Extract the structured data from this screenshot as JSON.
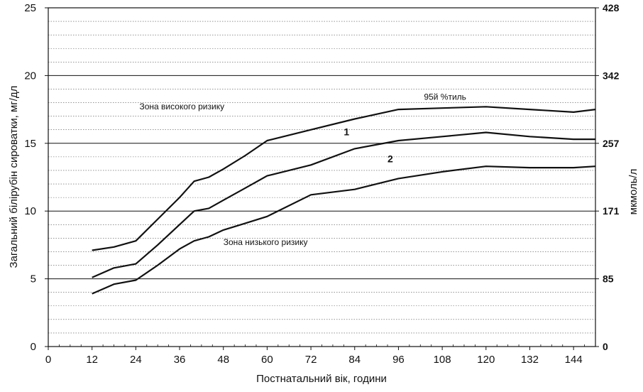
{
  "chart_data": {
    "type": "line",
    "title": "",
    "xlabel": "Постнатальний вік, години",
    "ylabel": "Загальний білірубін сироватки, мг/дл",
    "ylabel_right": "мкмоль/л",
    "xlim": [
      0,
      150
    ],
    "ylim": [
      0,
      25
    ],
    "x_ticks": [
      0,
      12,
      24,
      36,
      48,
      60,
      72,
      84,
      96,
      108,
      120,
      132,
      144
    ],
    "y_ticks": [
      0,
      5,
      10,
      15,
      20,
      25
    ],
    "y_right_ticks": [
      {
        "value": 0,
        "label": "0"
      },
      {
        "value": 5,
        "label": "85"
      },
      {
        "value": 10,
        "label": "171"
      },
      {
        "value": 15,
        "label": "257"
      },
      {
        "value": 20,
        "label": "342"
      },
      {
        "value": 25,
        "label": "428"
      }
    ],
    "grid": true,
    "series": [
      {
        "name": "95й %тиль",
        "x": [
          12,
          18,
          24,
          30,
          36,
          40,
          44,
          48,
          54,
          60,
          72,
          84,
          96,
          108,
          120,
          132,
          144,
          150
        ],
        "values": [
          7.1,
          7.35,
          7.8,
          9.4,
          11.0,
          12.2,
          12.5,
          13.1,
          14.1,
          15.2,
          16.0,
          16.8,
          17.5,
          17.6,
          17.7,
          17.5,
          17.3,
          17.5
        ]
      },
      {
        "name": "1",
        "x": [
          12,
          18,
          24,
          30,
          36,
          40,
          44,
          48,
          54,
          60,
          72,
          84,
          96,
          108,
          120,
          132,
          144,
          150
        ],
        "values": [
          5.1,
          5.8,
          6.1,
          7.5,
          9.0,
          10.0,
          10.2,
          10.8,
          11.7,
          12.6,
          13.4,
          14.6,
          15.2,
          15.5,
          15.8,
          15.5,
          15.3,
          15.3
        ]
      },
      {
        "name": "2",
        "x": [
          12,
          18,
          24,
          30,
          36,
          40,
          44,
          48,
          54,
          60,
          72,
          84,
          96,
          108,
          120,
          132,
          144,
          150
        ],
        "values": [
          3.9,
          4.6,
          4.9,
          6.0,
          7.2,
          7.8,
          8.1,
          8.6,
          9.1,
          9.6,
          11.2,
          11.6,
          12.4,
          12.9,
          13.3,
          13.2,
          13.2,
          13.3
        ]
      }
    ],
    "annotations": [
      {
        "text": "Зона високого ризику",
        "x": 25,
        "y": 17.5
      },
      {
        "text": "Зона низького ризику",
        "x": 48,
        "y": 7.5
      },
      {
        "text": "95й %тиль",
        "x": 103,
        "y": 18.2
      },
      {
        "text": "1",
        "x": 81,
        "y": 15.6
      },
      {
        "text": "2",
        "x": 93,
        "y": 13.6
      }
    ]
  }
}
